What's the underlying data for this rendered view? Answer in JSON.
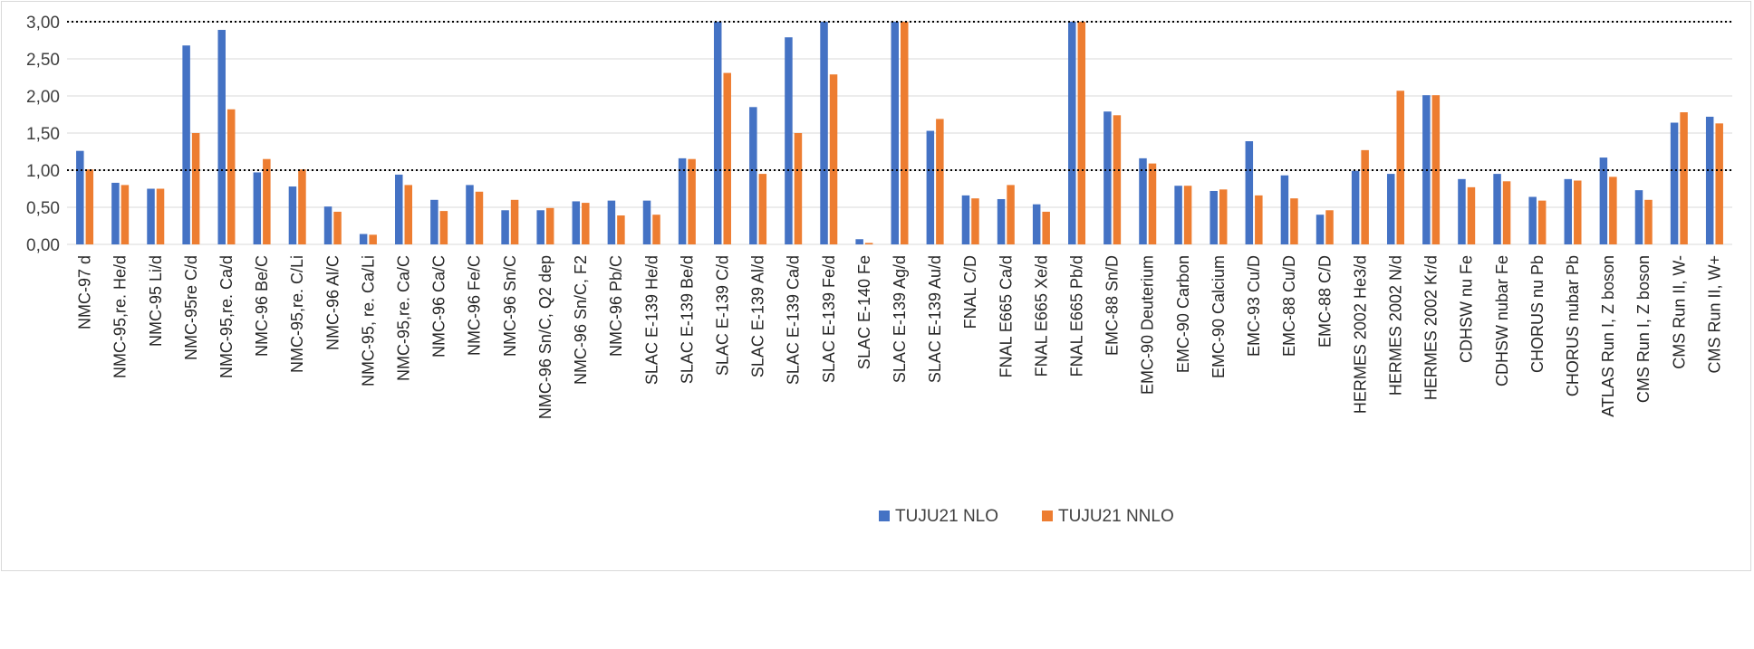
{
  "chart_data": {
    "type": "bar",
    "title": "",
    "xlabel": "",
    "ylabel": "",
    "ylim": [
      0,
      3
    ],
    "y_ticks": [
      "0,00",
      "0,50",
      "1,00",
      "1,50",
      "2,00",
      "2,50",
      "3,00"
    ],
    "grid": true,
    "reference_lines": [
      1.0,
      3.0
    ],
    "legend_position": "bottom",
    "categories": [
      "NMC-97 d",
      "NMC-95,re. He/d",
      "NMC-95 Li/d",
      "NMC-95re C/d",
      "NMC-95,re. Ca/d",
      "NMC-96 Be/C",
      "NMC-95,re. C/Li",
      "NMC-96 Al/C",
      "NMC-95, re. Ca/Li",
      "NMC-95,re. Ca/C",
      "NMC-96 Ca/C",
      "NMC-96 Fe/C",
      "NMC-96 Sn/C",
      "NMC-96 Sn/C, Q2 dep",
      "NMC-96 Sn/C, F2",
      "NMC-96 Pb/C",
      "SLAC E-139 He/d",
      "SLAC E-139 Be/d",
      "SLAC E-139 C/d",
      "SLAC E-139 Al/d",
      "SLAC E-139 Ca/d",
      "SLAC E-139 Fe/d",
      "SLAC E-140 Fe",
      "SLAC E-139 Ag/d",
      "SLAC E-139 Au/d",
      "FNAL C/D",
      "FNAL E665 Ca/d",
      "FNAL E665 Xe/d",
      "FNAL E665 Pb/d",
      "EMC-88 Sn/D",
      "EMC-90 Deuterium",
      "EMC-90 Carbon",
      "EMC-90 Calcium",
      "EMC-93 Cu/D",
      "EMC-88 Cu/D",
      "EMC-88 C/D",
      "HERMES 2002 He3/d",
      "HERMES 2002 N/d",
      "HERMES 2002 Kr/d",
      "CDHSW nu Fe",
      "CDHSW nubar Fe",
      "CHORUS nu Pb",
      "CHORUS nubar Pb",
      "ATLAS Run I, Z boson",
      "CMS Run I, Z boson",
      "CMS Run II, W-",
      "CMS Run II, W+"
    ],
    "series": [
      {
        "name": "TUJU21 NLO",
        "color": "#4472C4",
        "values": [
          1.26,
          0.83,
          0.75,
          2.68,
          2.89,
          0.97,
          0.78,
          0.51,
          0.14,
          0.94,
          0.6,
          0.8,
          0.46,
          0.46,
          0.58,
          0.59,
          0.59,
          1.16,
          3.0,
          1.85,
          2.79,
          3.0,
          0.07,
          3.0,
          1.53,
          0.66,
          0.61,
          0.54,
          3.0,
          1.79,
          1.16,
          0.79,
          0.72,
          1.39,
          0.93,
          0.4,
          0.99,
          0.95,
          2.01,
          0.88,
          0.95,
          0.64,
          0.88,
          1.17,
          0.73,
          1.64,
          1.72
        ]
      },
      {
        "name": "TUJU21 NNLO",
        "color": "#ED7D31",
        "values": [
          1.01,
          0.8,
          0.75,
          1.5,
          1.82,
          1.15,
          1.01,
          0.44,
          0.13,
          0.8,
          0.45,
          0.71,
          0.6,
          0.49,
          0.56,
          0.39,
          0.4,
          1.15,
          2.31,
          0.95,
          1.5,
          2.29,
          0.02,
          3.0,
          1.69,
          0.62,
          0.8,
          0.44,
          3.0,
          1.74,
          1.09,
          0.79,
          0.74,
          0.66,
          0.62,
          0.46,
          1.27,
          2.07,
          2.01,
          0.77,
          0.85,
          0.59,
          0.86,
          0.91,
          0.6,
          1.78,
          1.63
        ]
      }
    ]
  }
}
